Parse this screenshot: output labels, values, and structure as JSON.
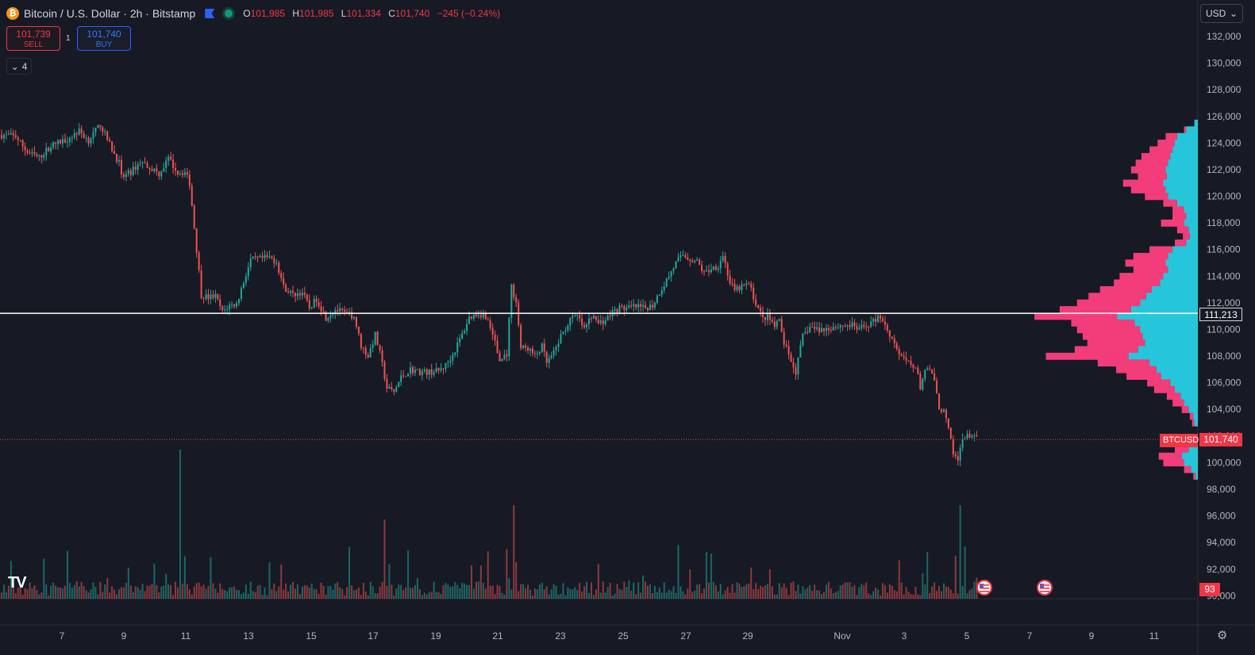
{
  "header": {
    "coin_icon": "bitcoin-icon",
    "symbol_title": "Bitcoin / U.S. Dollar · 2h · Bitstamp",
    "ohlc": [
      {
        "key": "O",
        "value": "101,985"
      },
      {
        "key": "H",
        "value": "101,985"
      },
      {
        "key": "L",
        "value": "101,334"
      },
      {
        "key": "C",
        "value": "101,740"
      }
    ],
    "change": "−245 (−0.24%)"
  },
  "trade": {
    "sell_price": "101,739",
    "sell_label": "SELL",
    "spread": "1",
    "buy_price": "101,740",
    "buy_label": "BUY"
  },
  "indicators_toggle": "4",
  "currency": "USD",
  "colors": {
    "background": "#161a25",
    "up": "#26a69a",
    "down": "#ef5350",
    "profile_up": "#26c6da",
    "profile_down": "#f23d7a",
    "grid": "#1e2230"
  },
  "chart_data": {
    "type": "candlestick",
    "title": "Bitcoin / U.S. Dollar · 2h · Bitstamp",
    "x_tick_labels": [
      "7",
      "9",
      "11",
      "13",
      "15",
      "17",
      "19",
      "21",
      "23",
      "25",
      "27",
      "29",
      "Nov",
      "3",
      "5",
      "7",
      "9",
      "11"
    ],
    "y_tick_labels": [
      "132,000",
      "130,000",
      "128,000",
      "126,000",
      "124,000",
      "122,000",
      "120,000",
      "118,000",
      "116,000",
      "114,000",
      "112,000",
      "110,000",
      "108,000",
      "106,000",
      "104,000",
      "102,000",
      "100,000",
      "98,000",
      "96,000",
      "94,000",
      "92,000",
      "90,000"
    ],
    "ylim": [
      90000,
      133000
    ],
    "close_path": [
      {
        "x": 0,
        "y": 124600
      },
      {
        "x": 6,
        "y": 124500
      },
      {
        "x": 11,
        "y": 123300
      },
      {
        "x": 16,
        "y": 122900
      },
      {
        "x": 21,
        "y": 123800
      },
      {
        "x": 28,
        "y": 124300
      },
      {
        "x": 33,
        "y": 124900
      },
      {
        "x": 37,
        "y": 124200
      },
      {
        "x": 42,
        "y": 125400
      },
      {
        "x": 46,
        "y": 123900
      },
      {
        "x": 50,
        "y": 122500
      },
      {
        "x": 51,
        "y": 121400
      },
      {
        "x": 55,
        "y": 121800
      },
      {
        "x": 59,
        "y": 122600
      },
      {
        "x": 63,
        "y": 122200
      },
      {
        "x": 67,
        "y": 121700
      },
      {
        "x": 71,
        "y": 122800
      },
      {
        "x": 75,
        "y": 121800
      },
      {
        "x": 78,
        "y": 121800
      },
      {
        "x": 80,
        "y": 121000
      },
      {
        "x": 83,
        "y": 116000
      },
      {
        "x": 85,
        "y": 112600
      },
      {
        "x": 88,
        "y": 112400
      },
      {
        "x": 91,
        "y": 112500
      },
      {
        "x": 94,
        "y": 111300
      },
      {
        "x": 97,
        "y": 111800
      },
      {
        "x": 100,
        "y": 111900
      },
      {
        "x": 103,
        "y": 113600
      },
      {
        "x": 106,
        "y": 115200
      },
      {
        "x": 110,
        "y": 115300
      },
      {
        "x": 114,
        "y": 115400
      },
      {
        "x": 117,
        "y": 115100
      },
      {
        "x": 120,
        "y": 113200
      },
      {
        "x": 124,
        "y": 112600
      },
      {
        "x": 128,
        "y": 112800
      },
      {
        "x": 131,
        "y": 111600
      },
      {
        "x": 134,
        "y": 112300
      },
      {
        "x": 138,
        "y": 110900
      },
      {
        "x": 142,
        "y": 111500
      },
      {
        "x": 146,
        "y": 111200
      },
      {
        "x": 150,
        "y": 111000
      },
      {
        "x": 153,
        "y": 108800
      },
      {
        "x": 156,
        "y": 108000
      },
      {
        "x": 159,
        "y": 109600
      },
      {
        "x": 161,
        "y": 108200
      },
      {
        "x": 164,
        "y": 105600
      },
      {
        "x": 167,
        "y": 105300
      },
      {
        "x": 170,
        "y": 106400
      },
      {
        "x": 174,
        "y": 107000
      },
      {
        "x": 178,
        "y": 106800
      },
      {
        "x": 182,
        "y": 106800
      },
      {
        "x": 186,
        "y": 106900
      },
      {
        "x": 189,
        "y": 107300
      },
      {
        "x": 192,
        "y": 108100
      },
      {
        "x": 196,
        "y": 109600
      },
      {
        "x": 199,
        "y": 110900
      },
      {
        "x": 203,
        "y": 111200
      },
      {
        "x": 206,
        "y": 111000
      },
      {
        "x": 209,
        "y": 109700
      },
      {
        "x": 212,
        "y": 107600
      },
      {
        "x": 215,
        "y": 108200
      },
      {
        "x": 217,
        "y": 113200
      },
      {
        "x": 219,
        "y": 112100
      },
      {
        "x": 221,
        "y": 108600
      },
      {
        "x": 224,
        "y": 108600
      },
      {
        "x": 227,
        "y": 108000
      },
      {
        "x": 230,
        "y": 108700
      },
      {
        "x": 232,
        "y": 107500
      },
      {
        "x": 235,
        "y": 108200
      },
      {
        "x": 238,
        "y": 109500
      },
      {
        "x": 242,
        "y": 110700
      },
      {
        "x": 245,
        "y": 111000
      },
      {
        "x": 248,
        "y": 110000
      },
      {
        "x": 251,
        "y": 111000
      },
      {
        "x": 254,
        "y": 110500
      },
      {
        "x": 257,
        "y": 110700
      },
      {
        "x": 260,
        "y": 111300
      },
      {
        "x": 263,
        "y": 111600
      },
      {
        "x": 267,
        "y": 111600
      },
      {
        "x": 270,
        "y": 111700
      },
      {
        "x": 273,
        "y": 111600
      },
      {
        "x": 277,
        "y": 111800
      },
      {
        "x": 280,
        "y": 112800
      },
      {
        "x": 283,
        "y": 113700
      },
      {
        "x": 287,
        "y": 115000
      },
      {
        "x": 290,
        "y": 115600
      },
      {
        "x": 293,
        "y": 115300
      },
      {
        "x": 296,
        "y": 115100
      },
      {
        "x": 299,
        "y": 114200
      },
      {
        "x": 302,
        "y": 114600
      },
      {
        "x": 305,
        "y": 114800
      },
      {
        "x": 307,
        "y": 115600
      },
      {
        "x": 310,
        "y": 113500
      },
      {
        "x": 312,
        "y": 112900
      },
      {
        "x": 315,
        "y": 113200
      },
      {
        "x": 318,
        "y": 113400
      },
      {
        "x": 321,
        "y": 112000
      },
      {
        "x": 324,
        "y": 110800
      },
      {
        "x": 326,
        "y": 111000
      },
      {
        "x": 329,
        "y": 110200
      },
      {
        "x": 331,
        "y": 110600
      },
      {
        "x": 333,
        "y": 109000
      },
      {
        "x": 335,
        "y": 108000
      },
      {
        "x": 338,
        "y": 106800
      },
      {
        "x": 341,
        "y": 109500
      },
      {
        "x": 344,
        "y": 110200
      },
      {
        "x": 347,
        "y": 110000
      },
      {
        "x": 350,
        "y": 110000
      },
      {
        "x": 354,
        "y": 110200
      },
      {
        "x": 358,
        "y": 110300
      },
      {
        "x": 362,
        "y": 110300
      },
      {
        "x": 365,
        "y": 110000
      },
      {
        "x": 368,
        "y": 110300
      },
      {
        "x": 371,
        "y": 110600
      },
      {
        "x": 374,
        "y": 111000
      },
      {
        "x": 377,
        "y": 110000
      },
      {
        "x": 380,
        "y": 109000
      },
      {
        "x": 383,
        "y": 107800
      },
      {
        "x": 386,
        "y": 107500
      },
      {
        "x": 389,
        "y": 107200
      },
      {
        "x": 391,
        "y": 105700
      },
      {
        "x": 393,
        "y": 106900
      },
      {
        "x": 396,
        "y": 106800
      },
      {
        "x": 399,
        "y": 104200
      },
      {
        "x": 401,
        "y": 103800
      },
      {
        "x": 403,
        "y": 102500
      },
      {
        "x": 405,
        "y": 100600
      },
      {
        "x": 407,
        "y": 100300
      },
      {
        "x": 409,
        "y": 101600
      },
      {
        "x": 411,
        "y": 102200
      },
      {
        "x": 413,
        "y": 101900
      },
      {
        "x": 415,
        "y": 101740
      }
    ],
    "volume_profile_bins": [
      [
        125500,
        0.03,
        0.0
      ],
      [
        125000,
        0.1,
        0.02
      ],
      [
        124500,
        0.18,
        0.1
      ],
      [
        124000,
        0.2,
        0.15
      ],
      [
        123500,
        0.22,
        0.2
      ],
      [
        123000,
        0.24,
        0.25
      ],
      [
        122500,
        0.26,
        0.28
      ],
      [
        122000,
        0.28,
        0.3
      ],
      [
        121500,
        0.27,
        0.25
      ],
      [
        121000,
        0.3,
        0.35
      ],
      [
        120500,
        0.28,
        0.3
      ],
      [
        120000,
        0.26,
        0.2
      ],
      [
        119500,
        0.18,
        0.12
      ],
      [
        119000,
        0.12,
        0.1
      ],
      [
        118500,
        0.1,
        0.12
      ],
      [
        118000,
        0.12,
        0.2
      ],
      [
        117500,
        0.08,
        0.1
      ],
      [
        117000,
        0.07,
        0.06
      ],
      [
        116500,
        0.1,
        0.1
      ],
      [
        116000,
        0.22,
        0.2
      ],
      [
        115500,
        0.26,
        0.3
      ],
      [
        115000,
        0.28,
        0.35
      ],
      [
        114500,
        0.26,
        0.3
      ],
      [
        114000,
        0.3,
        0.38
      ],
      [
        113500,
        0.33,
        0.4
      ],
      [
        113000,
        0.4,
        0.45
      ],
      [
        112500,
        0.45,
        0.5
      ],
      [
        112000,
        0.5,
        0.55
      ],
      [
        111500,
        0.58,
        0.62
      ],
      [
        111000,
        0.7,
        0.72
      ],
      [
        110500,
        0.55,
        0.55
      ],
      [
        110000,
        0.5,
        0.55
      ],
      [
        109500,
        0.48,
        0.52
      ],
      [
        109000,
        0.46,
        0.5
      ],
      [
        108500,
        0.52,
        0.55
      ],
      [
        108000,
        0.6,
        0.72
      ],
      [
        107500,
        0.42,
        0.45
      ],
      [
        107000,
        0.36,
        0.35
      ],
      [
        106500,
        0.32,
        0.3
      ],
      [
        106000,
        0.24,
        0.2
      ],
      [
        105500,
        0.2,
        0.18
      ],
      [
        105000,
        0.15,
        0.12
      ],
      [
        104500,
        0.12,
        0.1
      ],
      [
        104000,
        0.08,
        0.06
      ],
      [
        103500,
        0.04,
        0.03
      ],
      [
        103000,
        0.03,
        0.02
      ],
      [
        101000,
        0.08,
        0.12
      ],
      [
        100500,
        0.14,
        0.2
      ],
      [
        100000,
        0.12,
        0.18
      ],
      [
        99500,
        0.06,
        0.06
      ],
      [
        99000,
        0.02,
        0.02
      ]
    ]
  },
  "price_lines": {
    "horizontal_line_price": "111,213",
    "last_price_symbol": "BTCUSD",
    "last_price": "101,740",
    "volume_value": "93"
  },
  "icons": {
    "event_icons": [
      "us-flag-icon",
      "us-flag-icon"
    ],
    "logo": "tradingview-logo",
    "settings": "gear-icon"
  }
}
